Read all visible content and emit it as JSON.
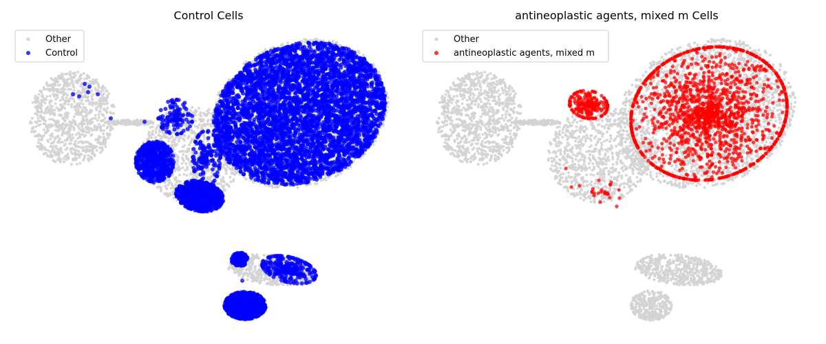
{
  "colors": {
    "other": "#d3d3d3",
    "control": "#0000ff",
    "treated": "#ff0000"
  },
  "chart_data": [
    {
      "type": "scatter",
      "title": "Control Cells",
      "legend": {
        "placement": "top-left",
        "entries": [
          "Other",
          "Control"
        ]
      },
      "grid": false,
      "axes_visible": false,
      "series": [
        {
          "name": "Other",
          "color": "#d3d3d3"
        },
        {
          "name": "Control",
          "color": "#0000ff"
        }
      ]
    },
    {
      "type": "scatter",
      "title": "antineoplastic agents, mixed m Cells",
      "legend": {
        "placement": "top-left",
        "entries": [
          "Other",
          "antineoplastic agents, mixed m"
        ]
      },
      "grid": false,
      "axes_visible": false,
      "series": [
        {
          "name": "Other",
          "color": "#d3d3d3"
        },
        {
          "name": "antineoplastic agents, mixed m",
          "color": "#ff0000"
        }
      ]
    }
  ]
}
